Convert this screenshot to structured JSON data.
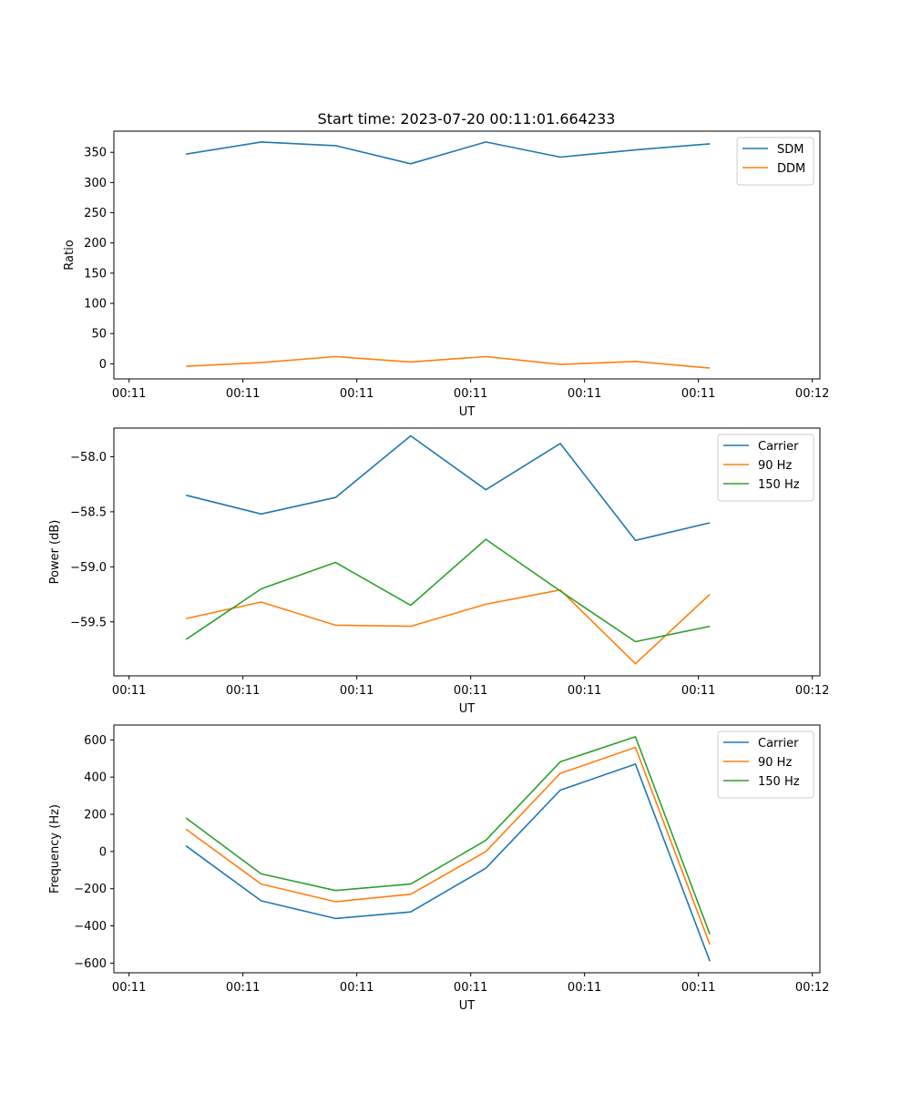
{
  "figure": {
    "title": "Start time: 2023-07-20 00:11:01.664233"
  },
  "colors": {
    "series_blue": "#1f77b4",
    "series_orange": "#ff7f0e",
    "series_green": "#2ca02c"
  },
  "chart_data": [
    {
      "type": "line",
      "name": "ratio-chart",
      "title": "Start time: 2023-07-20 00:11:01.664233",
      "xlabel": "UT",
      "ylabel": "Ratio",
      "xlim": [
        -0.2,
        9.1
      ],
      "ylim": [
        -25,
        385
      ],
      "x_ticks": [
        0,
        1.5,
        3,
        4.5,
        6,
        7.5,
        9
      ],
      "x_tick_labels": [
        "00:11",
        "00:11",
        "00:11",
        "00:11",
        "00:11",
        "00:11",
        "00:12"
      ],
      "y_ticks": [
        0,
        50,
        100,
        150,
        200,
        250,
        300,
        350
      ],
      "y_tick_labels": [
        "0",
        "50",
        "100",
        "150",
        "200",
        "250",
        "300",
        "350"
      ],
      "legend_position": "top-right",
      "x": [
        0.75,
        1.74,
        2.72,
        3.71,
        4.7,
        5.68,
        6.67,
        7.65
      ],
      "series": [
        {
          "name": "SDM",
          "color": "#1f77b4",
          "values": [
            347,
            367,
            361,
            331,
            367,
            342,
            354,
            364
          ]
        },
        {
          "name": "DDM",
          "color": "#ff7f0e",
          "values": [
            -4,
            2,
            12,
            3,
            12,
            -1,
            4,
            -7
          ]
        }
      ]
    },
    {
      "type": "line",
      "name": "power-chart",
      "title": "",
      "xlabel": "UT",
      "ylabel": "Power (dB)",
      "xlim": [
        -0.2,
        9.1
      ],
      "ylim": [
        -59.99,
        -57.74
      ],
      "x_ticks": [
        0,
        1.5,
        3,
        4.5,
        6,
        7.5,
        9
      ],
      "x_tick_labels": [
        "00:11",
        "00:11",
        "00:11",
        "00:11",
        "00:11",
        "00:11",
        "00:12"
      ],
      "y_ticks": [
        -59.5,
        -59.0,
        -58.5,
        -58.0
      ],
      "y_tick_labels": [
        "−59.5",
        "−59.0",
        "−58.5",
        "−58.0"
      ],
      "legend_position": "top-right",
      "x": [
        0.75,
        1.74,
        2.72,
        3.71,
        4.7,
        5.68,
        6.67,
        7.65
      ],
      "series": [
        {
          "name": "Carrier",
          "color": "#1f77b4",
          "values": [
            -58.35,
            -58.52,
            -58.37,
            -57.81,
            -58.3,
            -57.88,
            -58.76,
            -58.6
          ]
        },
        {
          "name": "90 Hz",
          "color": "#ff7f0e",
          "values": [
            -59.47,
            -59.32,
            -59.53,
            -59.54,
            -59.34,
            -59.21,
            -59.88,
            -59.25
          ]
        },
        {
          "name": "150 Hz",
          "color": "#2ca02c",
          "values": [
            -59.66,
            -59.2,
            -58.96,
            -59.35,
            -58.75,
            -59.22,
            -59.68,
            -59.54
          ]
        }
      ]
    },
    {
      "type": "line",
      "name": "frequency-chart",
      "title": "",
      "xlabel": "UT",
      "ylabel": "Frequency (Hz)",
      "xlim": [
        -0.2,
        9.1
      ],
      "ylim": [
        -652,
        680
      ],
      "x_ticks": [
        0,
        1.5,
        3,
        4.5,
        6,
        7.5,
        9
      ],
      "x_tick_labels": [
        "00:11",
        "00:11",
        "00:11",
        "00:11",
        "00:11",
        "00:11",
        "00:12"
      ],
      "y_ticks": [
        -600,
        -400,
        -200,
        0,
        200,
        400,
        600
      ],
      "y_tick_labels": [
        "−600",
        "−400",
        "−200",
        "0",
        "200",
        "400",
        "600"
      ],
      "legend_position": "top-right",
      "x": [
        0.75,
        1.74,
        2.72,
        3.71,
        4.7,
        5.68,
        6.67,
        7.65
      ],
      "series": [
        {
          "name": "Carrier",
          "color": "#1f77b4",
          "values": [
            30,
            -265,
            -360,
            -325,
            -90,
            330,
            470,
            -590
          ]
        },
        {
          "name": "90 Hz",
          "color": "#ff7f0e",
          "values": [
            120,
            -175,
            -270,
            -230,
            0,
            420,
            560,
            -500
          ]
        },
        {
          "name": "150 Hz",
          "color": "#2ca02c",
          "values": [
            180,
            -120,
            -210,
            -175,
            60,
            482,
            617,
            -445
          ]
        }
      ]
    }
  ]
}
